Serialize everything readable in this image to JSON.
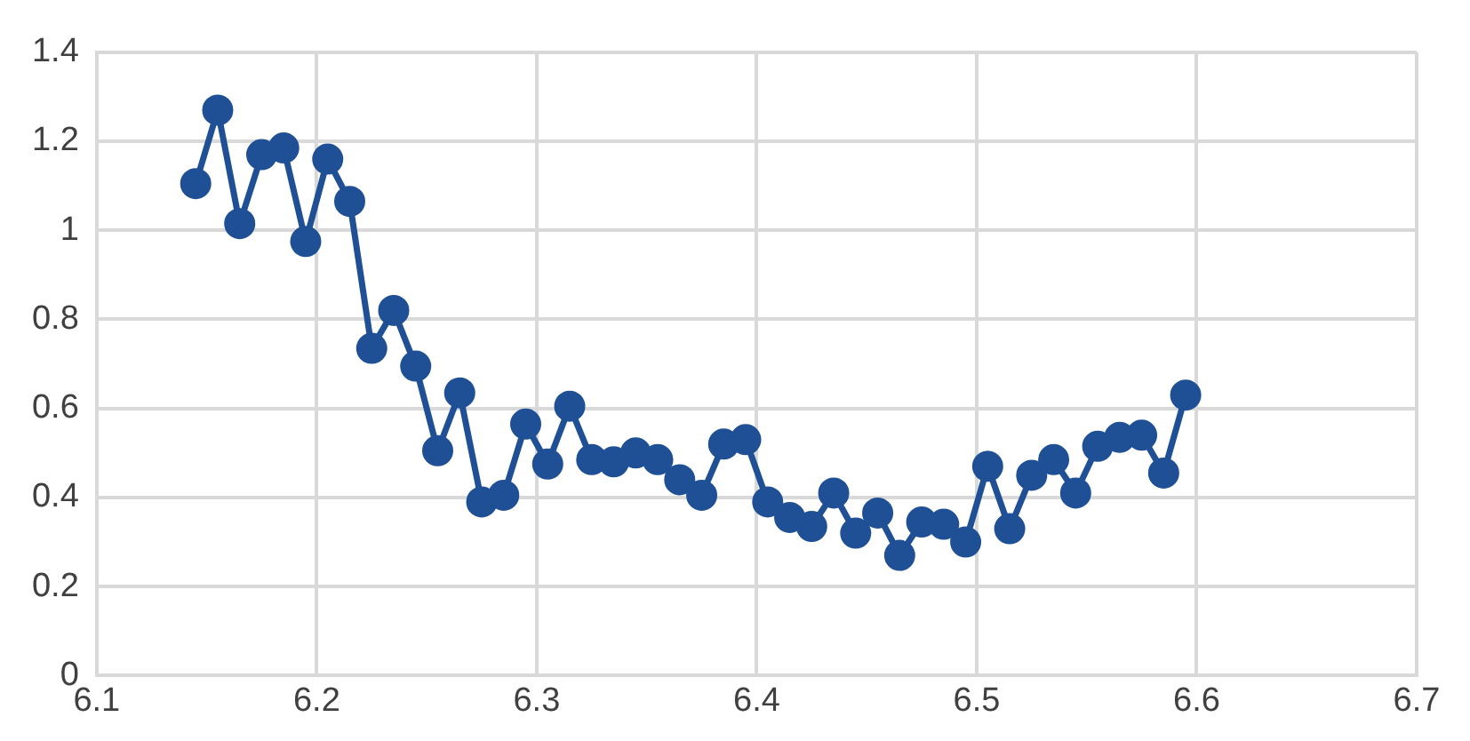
{
  "chart_data": {
    "type": "line",
    "x": [
      6.145,
      6.155,
      6.165,
      6.175,
      6.185,
      6.195,
      6.205,
      6.215,
      6.225,
      6.235,
      6.245,
      6.255,
      6.265,
      6.275,
      6.285,
      6.295,
      6.305,
      6.315,
      6.325,
      6.335,
      6.345,
      6.355,
      6.365,
      6.375,
      6.385,
      6.395,
      6.405,
      6.415,
      6.425,
      6.435,
      6.445,
      6.455,
      6.465,
      6.475,
      6.485,
      6.495,
      6.505,
      6.515,
      6.525,
      6.535,
      6.545,
      6.555,
      6.565,
      6.575,
      6.585,
      6.595
    ],
    "series": [
      {
        "color": "#1f5096",
        "values": [
          1.105,
          1.27,
          1.015,
          1.17,
          1.185,
          0.975,
          1.16,
          1.065,
          0.735,
          0.82,
          0.695,
          0.505,
          0.635,
          0.39,
          0.405,
          0.565,
          0.475,
          0.605,
          0.485,
          0.48,
          0.5,
          0.485,
          0.44,
          0.405,
          0.52,
          0.53,
          0.39,
          0.355,
          0.335,
          0.41,
          0.32,
          0.365,
          0.27,
          0.345,
          0.34,
          0.3,
          0.47,
          0.33,
          0.45,
          0.485,
          0.41,
          0.515,
          0.535,
          0.54,
          0.455,
          0.63
        ]
      }
    ],
    "xlim": [
      6.1,
      6.7
    ],
    "xticks": [
      6.1,
      6.2,
      6.3,
      6.4,
      6.5,
      6.6,
      6.7
    ],
    "ylim": [
      0,
      1.4
    ],
    "yticks": [
      0,
      0.2,
      0.4,
      0.6,
      0.8,
      1,
      1.2,
      1.4
    ],
    "grid": true,
    "marker": "circle",
    "line_style": "solid"
  }
}
